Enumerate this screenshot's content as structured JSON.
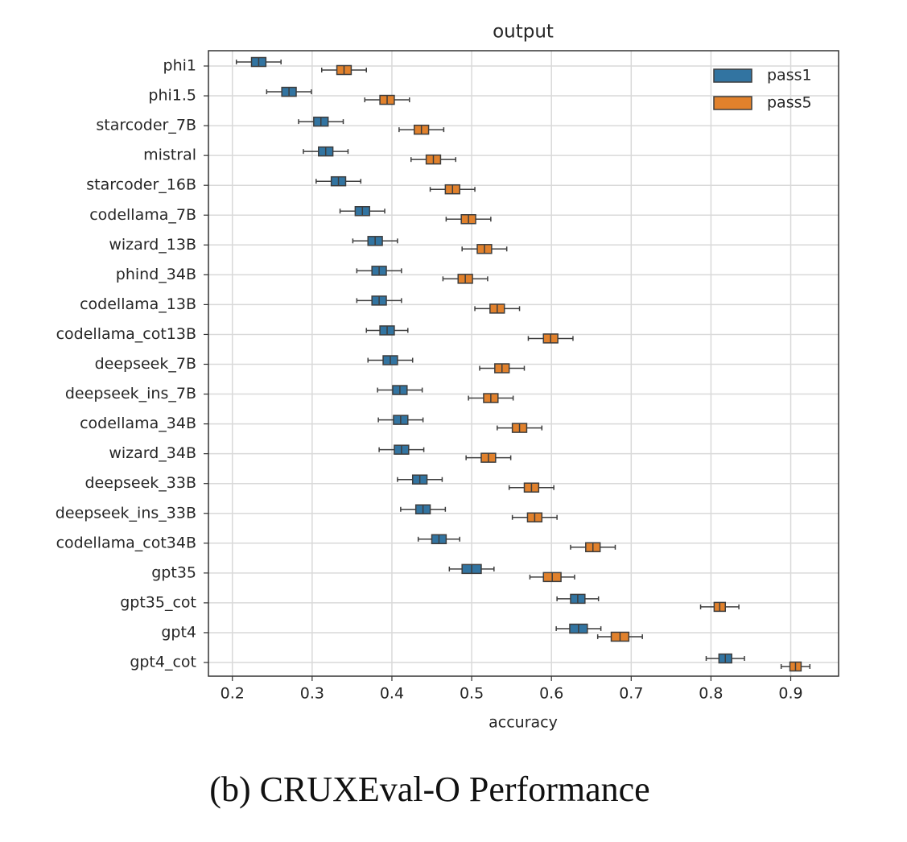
{
  "chart_data": {
    "type": "boxplot",
    "title": "output",
    "xlabel": "accuracy",
    "caption": "(b) CRUXEval-O Performance",
    "categories": [
      "phi1",
      "phi1.5",
      "starcoder_7B",
      "mistral",
      "starcoder_16B",
      "codellama_7B",
      "wizard_13B",
      "phind_34B",
      "codellama_13B",
      "codellama_cot13B",
      "deepseek_7B",
      "deepseek_ins_7B",
      "codellama_34B",
      "wizard_34B",
      "deepseek_33B",
      "deepseek_ins_33B",
      "codellama_cot34B",
      "gpt35",
      "gpt35_cot",
      "gpt4",
      "gpt4_cot"
    ],
    "xlim": [
      0.17,
      0.96
    ],
    "xticks": [
      0.2,
      0.3,
      0.4,
      0.5,
      0.6,
      0.7,
      0.8,
      0.9
    ],
    "grid": true,
    "legend": "upper right",
    "series": [
      {
        "name": "pass1",
        "color": "#3274a1",
        "whisker_low": [
          0.205,
          0.243,
          0.283,
          0.289,
          0.305,
          0.335,
          0.351,
          0.356,
          0.356,
          0.368,
          0.37,
          0.382,
          0.383,
          0.384,
          0.407,
          0.411,
          0.433,
          0.472,
          0.607,
          0.606,
          0.794
        ],
        "q1": [
          0.224,
          0.262,
          0.302,
          0.308,
          0.324,
          0.354,
          0.37,
          0.375,
          0.375,
          0.385,
          0.389,
          0.401,
          0.402,
          0.403,
          0.426,
          0.43,
          0.45,
          0.488,
          0.624,
          0.623,
          0.81
        ],
        "median": [
          0.233,
          0.271,
          0.311,
          0.317,
          0.333,
          0.363,
          0.379,
          0.384,
          0.384,
          0.394,
          0.398,
          0.41,
          0.411,
          0.412,
          0.435,
          0.439,
          0.459,
          0.5,
          0.633,
          0.634,
          0.818
        ],
        "q3": [
          0.242,
          0.28,
          0.32,
          0.326,
          0.342,
          0.372,
          0.388,
          0.393,
          0.393,
          0.403,
          0.407,
          0.419,
          0.42,
          0.421,
          0.444,
          0.448,
          0.468,
          0.512,
          0.642,
          0.645,
          0.826
        ],
        "whisker_high": [
          0.261,
          0.299,
          0.339,
          0.345,
          0.361,
          0.391,
          0.407,
          0.412,
          0.412,
          0.42,
          0.426,
          0.438,
          0.439,
          0.44,
          0.463,
          0.467,
          0.485,
          0.528,
          0.659,
          0.662,
          0.842
        ]
      },
      {
        "name": "pass5",
        "color": "#e1812c",
        "whisker_low": [
          0.312,
          0.366,
          0.409,
          0.424,
          0.448,
          0.468,
          0.488,
          0.464,
          0.504,
          0.571,
          0.51,
          0.496,
          0.532,
          0.493,
          0.547,
          0.551,
          0.624,
          0.573,
          0.787,
          0.658,
          0.888
        ],
        "q1": [
          0.331,
          0.385,
          0.428,
          0.443,
          0.467,
          0.487,
          0.507,
          0.483,
          0.523,
          0.59,
          0.529,
          0.515,
          0.551,
          0.512,
          0.566,
          0.57,
          0.643,
          0.59,
          0.804,
          0.675,
          0.899
        ],
        "median": [
          0.34,
          0.394,
          0.437,
          0.452,
          0.476,
          0.496,
          0.516,
          0.492,
          0.532,
          0.599,
          0.538,
          0.524,
          0.56,
          0.521,
          0.575,
          0.579,
          0.652,
          0.601,
          0.811,
          0.686,
          0.906
        ],
        "q3": [
          0.349,
          0.403,
          0.446,
          0.461,
          0.485,
          0.505,
          0.525,
          0.501,
          0.541,
          0.608,
          0.547,
          0.533,
          0.569,
          0.53,
          0.584,
          0.588,
          0.661,
          0.612,
          0.818,
          0.697,
          0.913
        ],
        "whisker_high": [
          0.368,
          0.422,
          0.465,
          0.48,
          0.504,
          0.524,
          0.544,
          0.52,
          0.56,
          0.627,
          0.566,
          0.552,
          0.588,
          0.549,
          0.603,
          0.607,
          0.68,
          0.629,
          0.835,
          0.714,
          0.924
        ]
      }
    ]
  }
}
